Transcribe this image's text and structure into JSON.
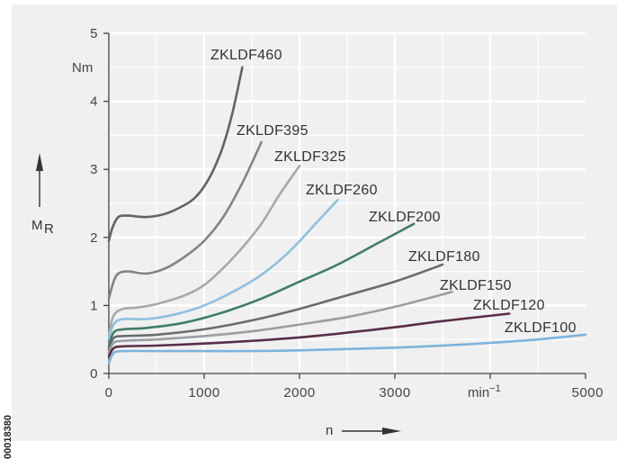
{
  "chart_data": {
    "type": "line",
    "title": "",
    "xlabel": "n",
    "ylabel": "M",
    "ylabel_subscript": "R",
    "y_unit": "Nm",
    "x_unit": "min",
    "x_unit_exponent": "−1",
    "xlim": [
      0,
      5000
    ],
    "ylim": [
      0,
      5
    ],
    "x_ticks": [
      "0",
      "1000",
      "2000",
      "3000",
      "5000"
    ],
    "y_ticks": [
      "0",
      "1",
      "2",
      "3",
      "4",
      "5"
    ],
    "grid": true,
    "figure_code": "00018380",
    "series": [
      {
        "name": "ZKLDF460",
        "color": "#5f6468",
        "points": [
          [
            0,
            1.95
          ],
          [
            40,
            2.15
          ],
          [
            100,
            2.3
          ],
          [
            200,
            2.32
          ],
          [
            400,
            2.3
          ],
          [
            600,
            2.35
          ],
          [
            800,
            2.48
          ],
          [
            900,
            2.58
          ],
          [
            1000,
            2.75
          ],
          [
            1100,
            3.0
          ],
          [
            1200,
            3.35
          ],
          [
            1300,
            3.85
          ],
          [
            1400,
            4.5
          ]
        ]
      },
      {
        "name": "ZKLDF395",
        "color": "#7e8589",
        "points": [
          [
            0,
            1.1
          ],
          [
            50,
            1.35
          ],
          [
            100,
            1.47
          ],
          [
            200,
            1.5
          ],
          [
            400,
            1.47
          ],
          [
            600,
            1.55
          ],
          [
            800,
            1.72
          ],
          [
            1000,
            1.95
          ],
          [
            1200,
            2.3
          ],
          [
            1400,
            2.8
          ],
          [
            1600,
            3.4
          ]
        ]
      },
      {
        "name": "ZKLDF325",
        "color": "#a3aaae",
        "points": [
          [
            0,
            0.55
          ],
          [
            50,
            0.85
          ],
          [
            150,
            0.95
          ],
          [
            300,
            0.97
          ],
          [
            500,
            1.02
          ],
          [
            800,
            1.15
          ],
          [
            1000,
            1.3
          ],
          [
            1200,
            1.55
          ],
          [
            1400,
            1.85
          ],
          [
            1600,
            2.2
          ],
          [
            1800,
            2.65
          ],
          [
            2000,
            3.05
          ]
        ]
      },
      {
        "name": "ZKLDF260",
        "color": "#8ec0df",
        "points": [
          [
            0,
            0.5
          ],
          [
            50,
            0.72
          ],
          [
            150,
            0.8
          ],
          [
            400,
            0.8
          ],
          [
            700,
            0.87
          ],
          [
            1000,
            1.0
          ],
          [
            1300,
            1.2
          ],
          [
            1600,
            1.45
          ],
          [
            1900,
            1.8
          ],
          [
            2200,
            2.25
          ],
          [
            2400,
            2.55
          ]
        ]
      },
      {
        "name": "ZKLDF200",
        "color": "#3f7f66",
        "points": [
          [
            0,
            0.4
          ],
          [
            50,
            0.6
          ],
          [
            150,
            0.65
          ],
          [
            400,
            0.67
          ],
          [
            800,
            0.75
          ],
          [
            1200,
            0.9
          ],
          [
            1600,
            1.1
          ],
          [
            2000,
            1.35
          ],
          [
            2400,
            1.6
          ],
          [
            2800,
            1.9
          ],
          [
            3200,
            2.2
          ]
        ]
      },
      {
        "name": "ZKLDF180",
        "color": "#686c70",
        "points": [
          [
            0,
            0.35
          ],
          [
            50,
            0.52
          ],
          [
            150,
            0.55
          ],
          [
            500,
            0.57
          ],
          [
            1000,
            0.65
          ],
          [
            1500,
            0.78
          ],
          [
            2000,
            0.95
          ],
          [
            2500,
            1.15
          ],
          [
            3000,
            1.35
          ],
          [
            3500,
            1.6
          ]
        ]
      },
      {
        "name": "ZKLDF150",
        "color": "#999fa4",
        "points": [
          [
            0,
            0.3
          ],
          [
            50,
            0.45
          ],
          [
            150,
            0.48
          ],
          [
            500,
            0.5
          ],
          [
            1000,
            0.55
          ],
          [
            1500,
            0.62
          ],
          [
            2000,
            0.72
          ],
          [
            2500,
            0.83
          ],
          [
            3000,
            0.98
          ],
          [
            3600,
            1.2
          ]
        ]
      },
      {
        "name": "ZKLDF120",
        "color": "#5a2d48",
        "points": [
          [
            0,
            0.25
          ],
          [
            50,
            0.37
          ],
          [
            150,
            0.4
          ],
          [
            500,
            0.41
          ],
          [
            1000,
            0.44
          ],
          [
            1500,
            0.48
          ],
          [
            2000,
            0.53
          ],
          [
            2500,
            0.6
          ],
          [
            3000,
            0.68
          ],
          [
            3500,
            0.77
          ],
          [
            4200,
            0.88
          ]
        ]
      },
      {
        "name": "ZKLDF100",
        "color": "#7db3dc",
        "points": [
          [
            0,
            0.15
          ],
          [
            50,
            0.3
          ],
          [
            150,
            0.33
          ],
          [
            500,
            0.33
          ],
          [
            1000,
            0.33
          ],
          [
            1500,
            0.33
          ],
          [
            2000,
            0.34
          ],
          [
            2500,
            0.36
          ],
          [
            3000,
            0.38
          ],
          [
            3500,
            0.41
          ],
          [
            4000,
            0.45
          ],
          [
            4500,
            0.5
          ],
          [
            5000,
            0.57
          ]
        ]
      }
    ]
  }
}
